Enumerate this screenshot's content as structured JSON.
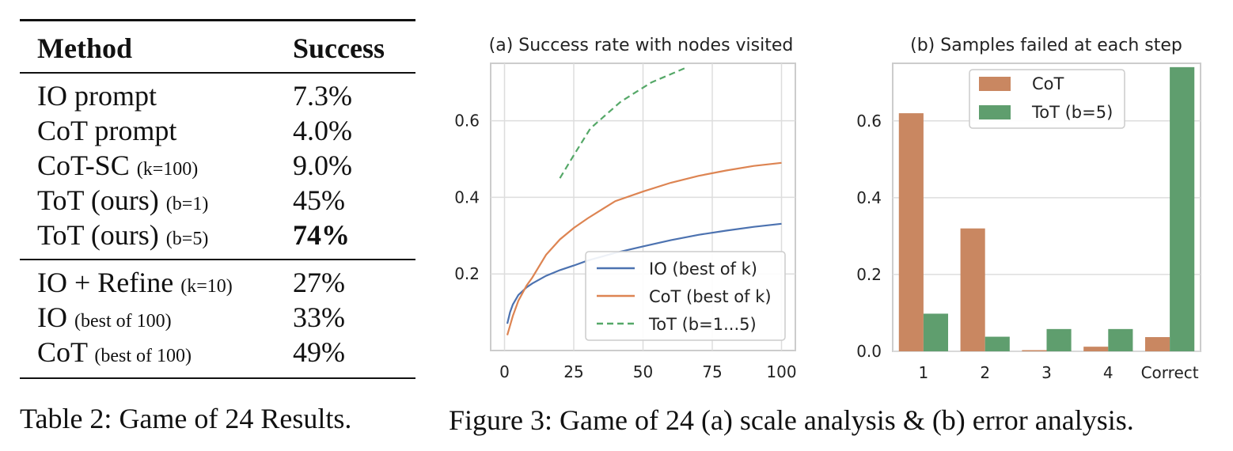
{
  "table": {
    "header": {
      "method": "Method",
      "success": "Success"
    },
    "rows": [
      {
        "method": "IO prompt",
        "note": "",
        "success": "7.3%",
        "bold": false
      },
      {
        "method": "CoT prompt",
        "note": "",
        "success": "4.0%",
        "bold": false
      },
      {
        "method": "CoT-SC",
        "note": "(k=100)",
        "success": "9.0%",
        "bold": false
      },
      {
        "method": "ToT (ours)",
        "note": "(b=1)",
        "success": "45%",
        "bold": false
      },
      {
        "method": "ToT (ours)",
        "note": "(b=5)",
        "success": "74%",
        "bold": true
      }
    ],
    "rows2": [
      {
        "method": "IO + Refine",
        "note": "(k=10)",
        "success": "27%"
      },
      {
        "method": "IO",
        "note": "(best of 100)",
        "success": "33%"
      },
      {
        "method": "CoT",
        "note": "(best of 100)",
        "success": "49%"
      }
    ],
    "caption": "Table 2: Game of 24 Results."
  },
  "figure_caption": "Figure 3: Game of 24 (a) scale analysis & (b) error analysis.",
  "chart_data": [
    {
      "type": "line",
      "title": "(a) Success rate with nodes visited",
      "xlabel": "",
      "ylabel": "",
      "xlim": [
        -5,
        105
      ],
      "ylim": [
        0,
        0.75
      ],
      "xticks": [
        0,
        25,
        50,
        75,
        100
      ],
      "yticks": [
        0.2,
        0.4,
        0.6
      ],
      "ytick_labels": [
        "0.2",
        "0.4",
        "0.6"
      ],
      "grid": true,
      "legend_position": "lower-right",
      "series": [
        {
          "name": "IO (best of k)",
          "color": "#4c72b0",
          "dash": "solid",
          "x": [
            1,
            2,
            3,
            5,
            8,
            10,
            15,
            20,
            25,
            30,
            40,
            50,
            60,
            70,
            80,
            90,
            100
          ],
          "y": [
            0.07,
            0.1,
            0.12,
            0.145,
            0.165,
            0.175,
            0.195,
            0.21,
            0.222,
            0.235,
            0.255,
            0.272,
            0.288,
            0.302,
            0.313,
            0.323,
            0.331
          ]
        },
        {
          "name": "CoT (best of k)",
          "color": "#dd8452",
          "dash": "solid",
          "x": [
            1,
            2,
            3,
            5,
            8,
            10,
            15,
            20,
            25,
            30,
            40,
            50,
            60,
            70,
            80,
            90,
            100
          ],
          "y": [
            0.04,
            0.065,
            0.09,
            0.13,
            0.17,
            0.19,
            0.25,
            0.29,
            0.32,
            0.345,
            0.39,
            0.415,
            0.438,
            0.456,
            0.47,
            0.482,
            0.49
          ]
        },
        {
          "name": "ToT (b=1...5)",
          "color": "#55a868",
          "dash": "dashed",
          "x": [
            20,
            25,
            31,
            42,
            53,
            66
          ],
          "y": [
            0.45,
            0.51,
            0.58,
            0.65,
            0.7,
            0.74
          ]
        }
      ]
    },
    {
      "type": "bar",
      "title": "(b) Samples failed at each step",
      "xlabel": "",
      "ylabel": "",
      "categories": [
        "1",
        "2",
        "3",
        "4",
        "Correct"
      ],
      "ylim": [
        0,
        0.75
      ],
      "yticks": [
        0.0,
        0.2,
        0.4,
        0.6
      ],
      "ytick_labels": [
        "0.0",
        "0.2",
        "0.4",
        "0.6"
      ],
      "grid": true,
      "legend_position": "upper-center",
      "series": [
        {
          "name": "CoT",
          "color": "#c98761",
          "values": [
            0.62,
            0.32,
            0.003,
            0.012,
            0.037
          ]
        },
        {
          "name": "ToT (b=5)",
          "color": "#5f9e6e",
          "values": [
            0.098,
            0.038,
            0.058,
            0.058,
            0.74
          ]
        }
      ]
    }
  ]
}
